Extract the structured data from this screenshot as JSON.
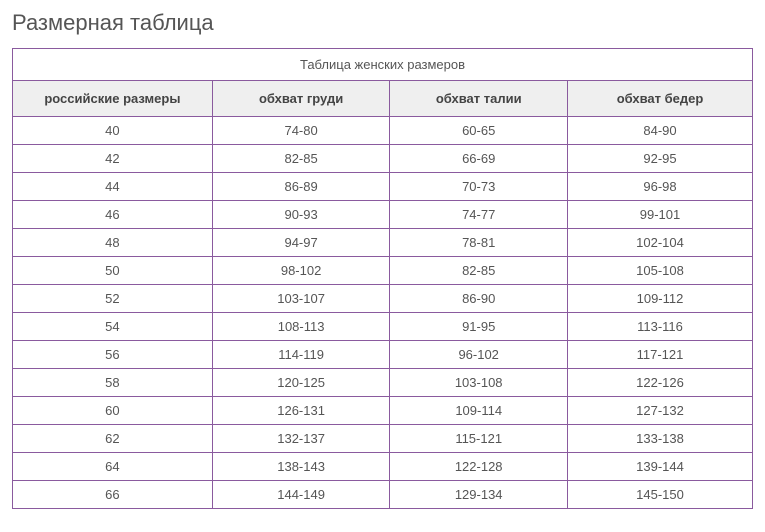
{
  "title": "Размерная таблица",
  "table": {
    "caption": "Таблица женских размеров",
    "border_color": "#8a5a9e",
    "header_bg": "#efefef",
    "text_color": "#555555",
    "header_text_color": "#444444",
    "font_size": 13,
    "columns": [
      {
        "label": "российские размеры",
        "width_pct": 27
      },
      {
        "label": "обхват груди",
        "width_pct": 24
      },
      {
        "label": "обхват талии",
        "width_pct": 24
      },
      {
        "label": "обхват бедер",
        "width_pct": 25
      }
    ],
    "rows": [
      [
        "40",
        "74-80",
        "60-65",
        "84-90"
      ],
      [
        "42",
        "82-85",
        "66-69",
        "92-95"
      ],
      [
        "44",
        "86-89",
        "70-73",
        "96-98"
      ],
      [
        "46",
        "90-93",
        "74-77",
        "99-101"
      ],
      [
        "48",
        "94-97",
        "78-81",
        "102-104"
      ],
      [
        "50",
        "98-102",
        "82-85",
        "105-108"
      ],
      [
        "52",
        "103-107",
        "86-90",
        "109-112"
      ],
      [
        "54",
        "108-113",
        "91-95",
        "113-116"
      ],
      [
        "56",
        "114-119",
        "96-102",
        "117-121"
      ],
      [
        "58",
        "120-125",
        "103-108",
        "122-126"
      ],
      [
        "60",
        "126-131",
        "109-114",
        "127-132"
      ],
      [
        "62",
        "132-137",
        "115-121",
        "133-138"
      ],
      [
        "64",
        "138-143",
        "122-128",
        "139-144"
      ],
      [
        "66",
        "144-149",
        "129-134",
        "145-150"
      ]
    ]
  }
}
